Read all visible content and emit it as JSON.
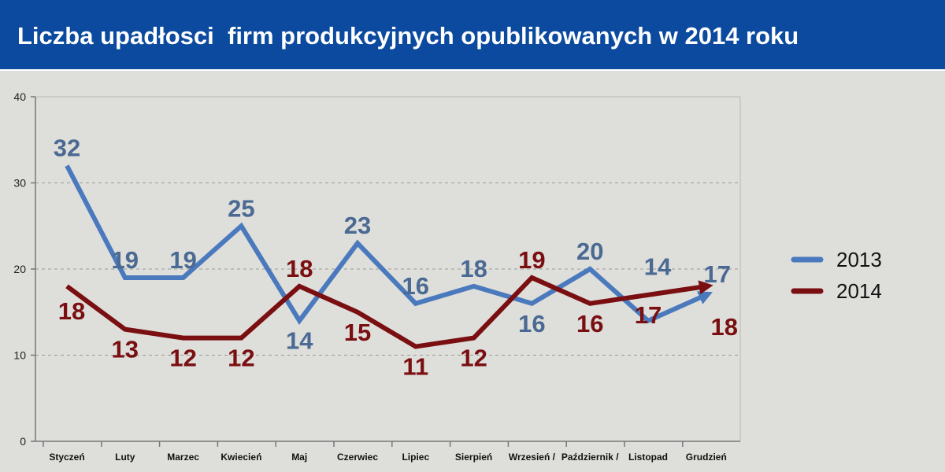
{
  "title": "Liczba upadłosci  firm produkcyjnych opublikowanych w 2014 roku",
  "colors": {
    "header_bg": "#0b4a9e",
    "series_2013": "#4a79bd",
    "series_2014": "#7a0f12",
    "label_2013": "#4a6a93"
  },
  "chart_data": {
    "type": "line",
    "title": "Liczba upadłosci  firm produkcyjnych opublikowanych w 2014 roku",
    "categories": [
      "Styczeń",
      "Luty",
      "Marzec",
      "Kwiecień",
      "Maj",
      "Czerwiec",
      "Lipiec",
      "Sierpień",
      "Wrzesień /",
      "Październik /",
      "Listopad",
      "Grudzień"
    ],
    "series": [
      {
        "name": "2013",
        "values": [
          32,
          19,
          19,
          25,
          14,
          23,
          16,
          18,
          16,
          20,
          14,
          17
        ]
      },
      {
        "name": "2014",
        "values": [
          18,
          13,
          12,
          12,
          18,
          15,
          11,
          12,
          19,
          16,
          17,
          18
        ]
      }
    ],
    "ylim": [
      0,
      40
    ],
    "yticks": [
      0,
      10,
      20,
      30,
      40
    ],
    "grid": true,
    "legend": "right",
    "xlabel": "",
    "ylabel": ""
  }
}
